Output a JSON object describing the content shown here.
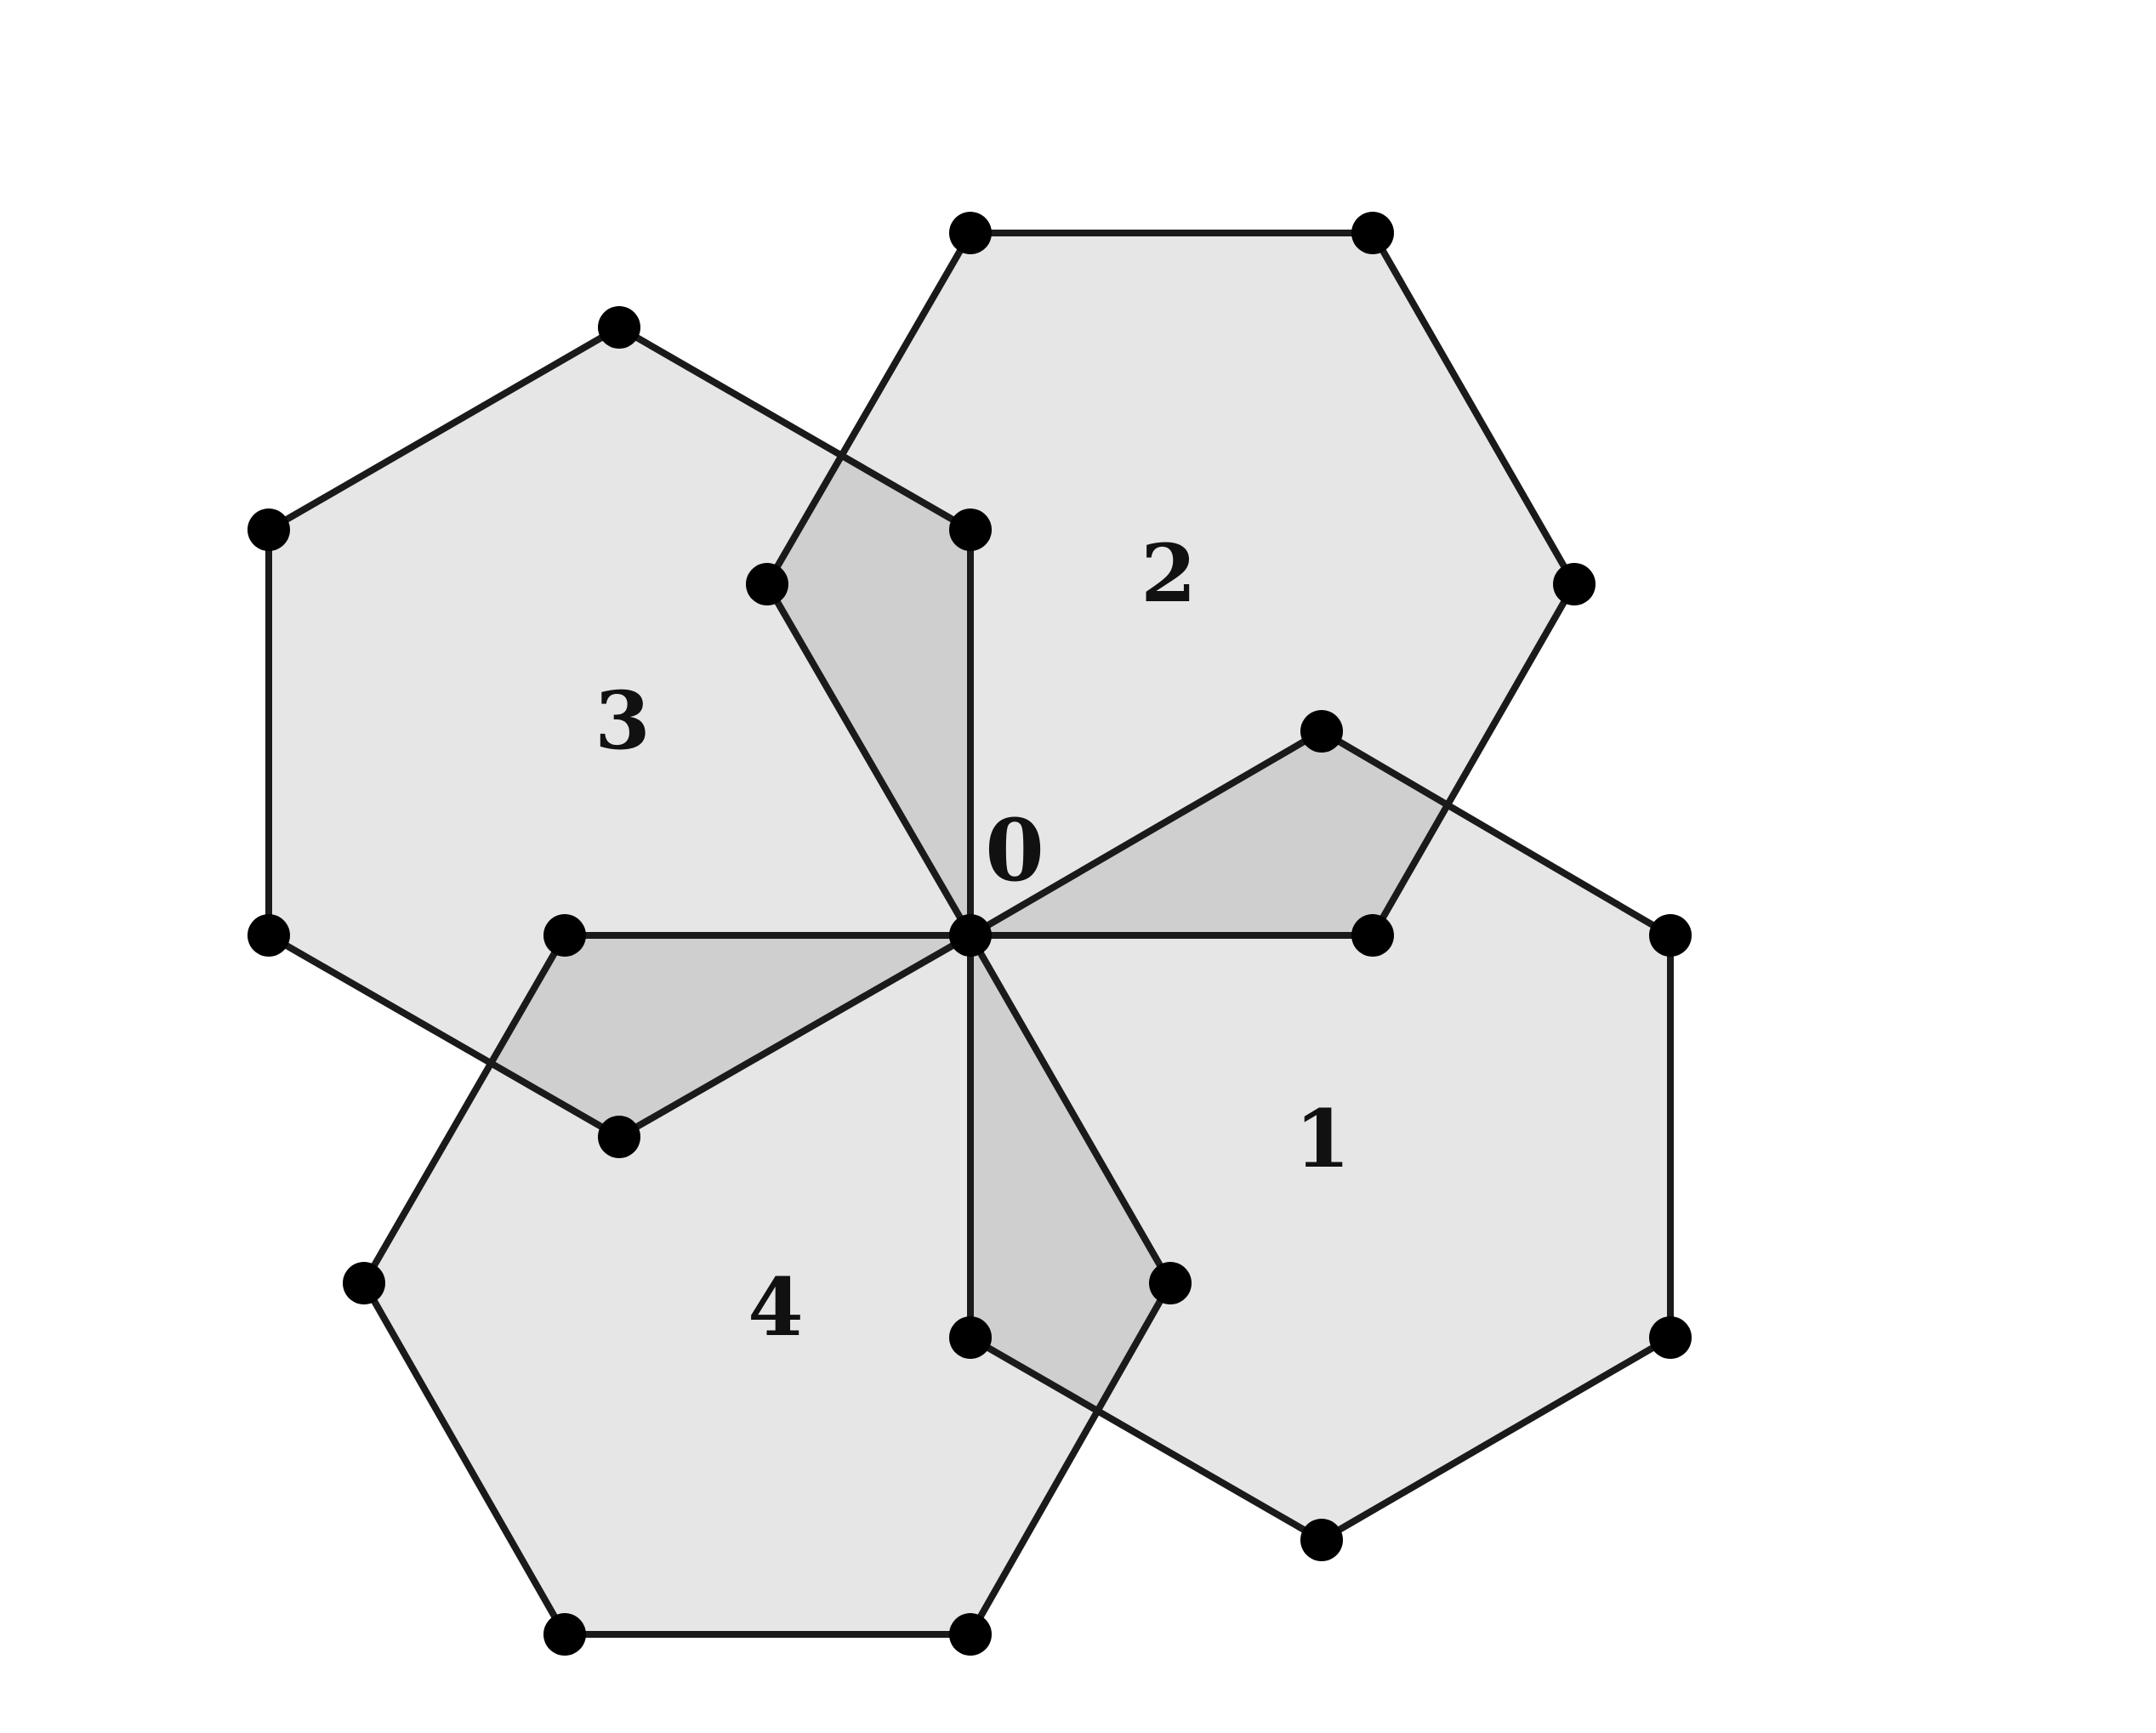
{
  "diagram": {
    "hexagons": [
      {
        "id": "1",
        "label": "1"
      },
      {
        "id": "2",
        "label": "2"
      },
      {
        "id": "3",
        "label": "3"
      },
      {
        "id": "4",
        "label": "4"
      }
    ],
    "center": {
      "label": "0"
    },
    "colors": {
      "hex_fill": "#e6e6e6",
      "overlap_fill": "#cfcfcf",
      "edge": "#1a1a1a",
      "vertex": "#000000"
    }
  }
}
